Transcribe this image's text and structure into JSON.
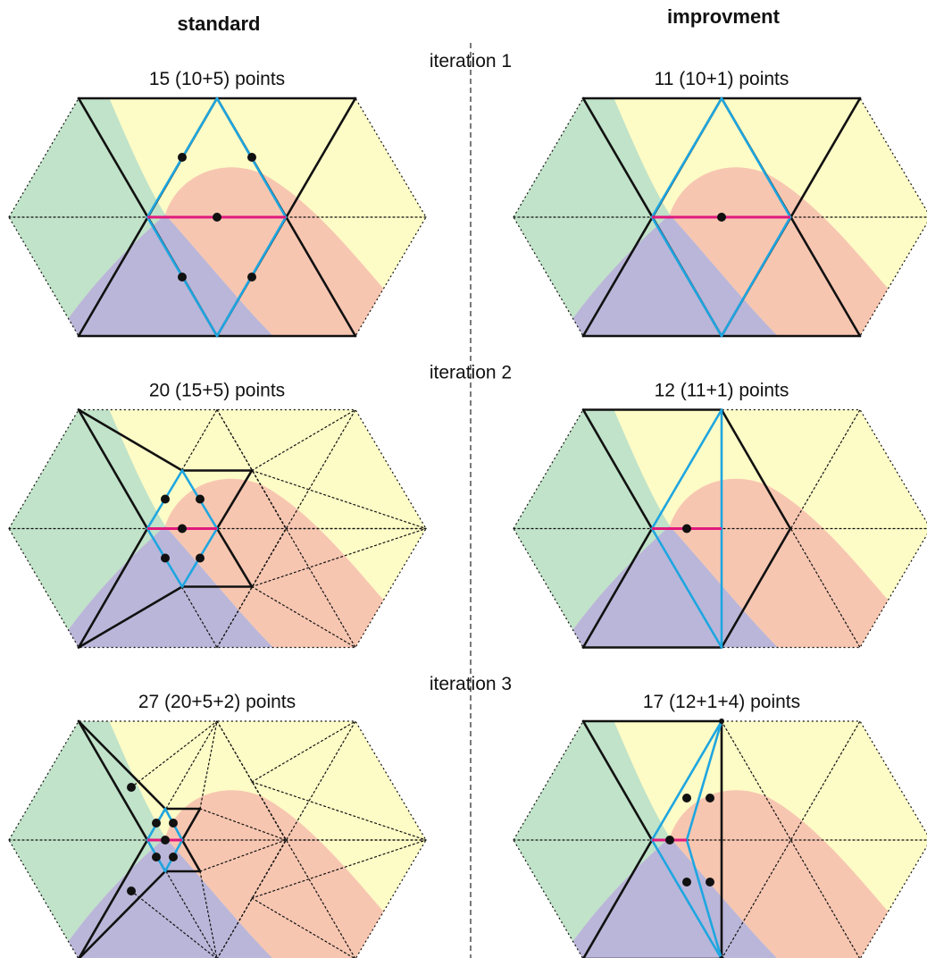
{
  "headers": {
    "standard": "standard",
    "improvement": "improvment"
  },
  "iterations": [
    {
      "label": "iteration 1",
      "standard": "15 (10+5) points",
      "improvement": "11 (10+1) points"
    },
    {
      "label": "iteration 2",
      "standard": "20 (15+5) points",
      "improvement": "12 (11+1) points"
    },
    {
      "label": "iteration 3",
      "standard": "27 (20+5+2) points",
      "improvement": "17 (12+1+4) points"
    }
  ]
}
